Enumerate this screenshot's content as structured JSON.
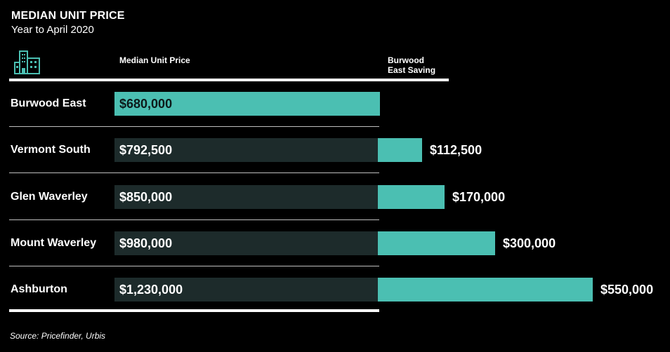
{
  "header": {
    "title": "MEDIAN UNIT PRICE",
    "subtitle": "Year to April 2020"
  },
  "columns": {
    "price_label": "Median Unit Price",
    "saving_label_line1": "Burwood",
    "saving_label_line2": "East Saving"
  },
  "source": "Source: Pricefinder, Urbis",
  "icon": "building-icon",
  "colors": {
    "background": "#000000",
    "accent": "#4bbfb2",
    "bar_dark": "#1d2b2b",
    "text": "#ffffff"
  },
  "chart_data": {
    "type": "bar",
    "orientation": "horizontal",
    "categories": [
      "Burwood East",
      "Vermont South",
      "Glen Waverley",
      "Mount Waverley",
      "Ashburton"
    ],
    "series": [
      {
        "name": "Median Unit Price",
        "values": [
          680000,
          792500,
          850000,
          980000,
          1230000
        ],
        "labels": [
          "$680,000",
          "$792,500",
          "$850,000",
          "$980,000",
          "$1,230,000"
        ]
      },
      {
        "name": "Burwood East Saving",
        "values": [
          0,
          112500,
          170000,
          300000,
          550000
        ],
        "labels": [
          "",
          "$112,500",
          "$170,000",
          "$300,000",
          "$550,000"
        ]
      }
    ],
    "title": "MEDIAN UNIT PRICE",
    "subtitle": "Year to April 2020"
  }
}
